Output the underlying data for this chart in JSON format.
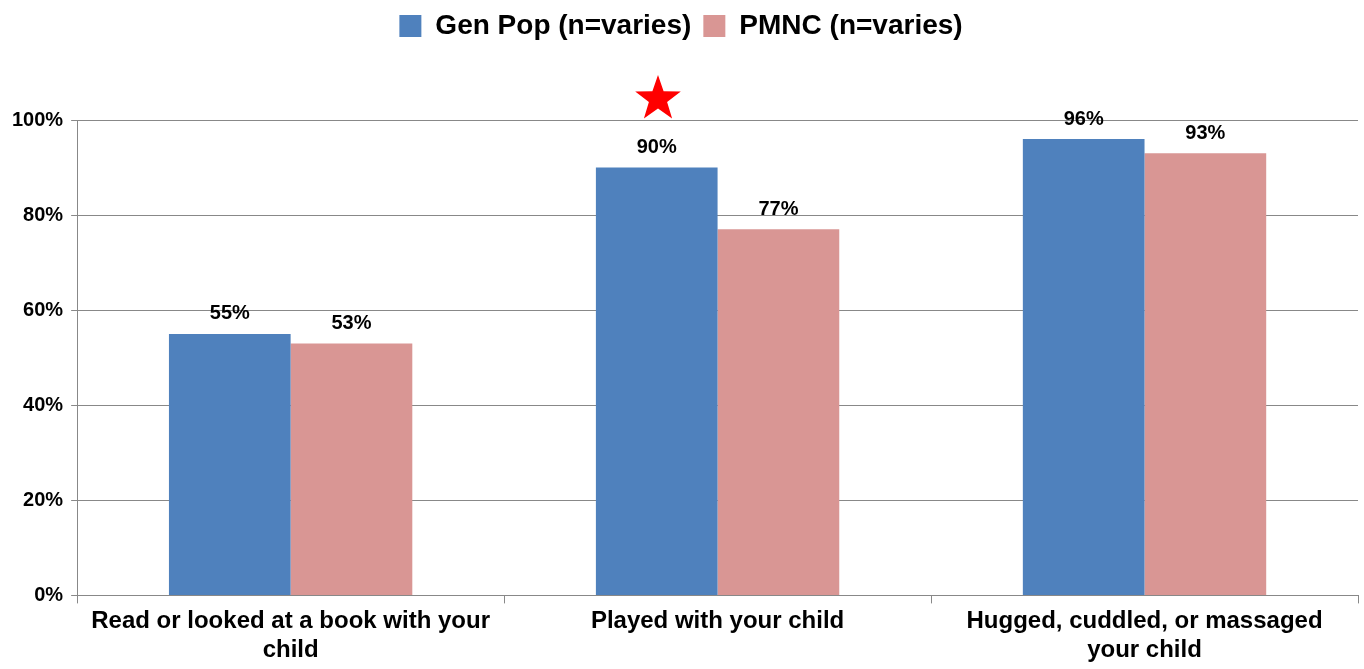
{
  "chart_data": {
    "type": "bar",
    "categories": [
      "Read or looked at a book with your child",
      "Played with your child",
      "Hugged, cuddled, or massaged your child"
    ],
    "series": [
      {
        "name": "Gen Pop (n=varies)",
        "color": "#4f81bd",
        "values": [
          55,
          90,
          96
        ],
        "value_labels": [
          "55%",
          "90%",
          "96%"
        ]
      },
      {
        "name": "PMNC (n=varies)",
        "color": "#d99694",
        "values": [
          53,
          77,
          93
        ],
        "value_labels": [
          "53%",
          "77%",
          "93%"
        ]
      }
    ],
    "ylim": [
      0,
      100
    ],
    "yticks": [
      {
        "value": 0,
        "label": "0%"
      },
      {
        "value": 20,
        "label": "20%"
      },
      {
        "value": 40,
        "label": "40%"
      },
      {
        "value": 60,
        "label": "60%"
      },
      {
        "value": 80,
        "label": "80%"
      },
      {
        "value": 100,
        "label": "100%"
      }
    ],
    "grid": "y",
    "legend": "top"
  }
}
